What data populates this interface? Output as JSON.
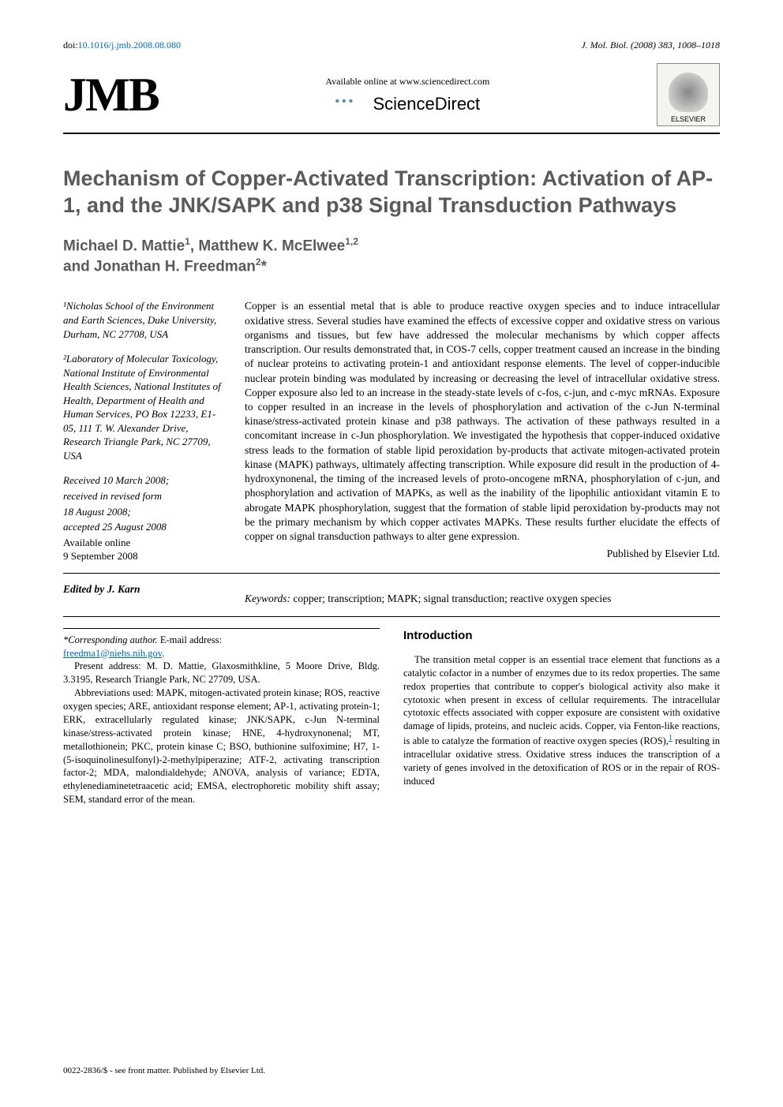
{
  "topbar": {
    "doi_label": "doi:",
    "doi_link": "10.1016/j.jmb.2008.08.080",
    "journal_ref": "J. Mol. Biol. (2008) 383, 1008–1018"
  },
  "header": {
    "jmb_logo": "JMB",
    "sd_available": "Available online at www.sciencedirect.com",
    "sd_name": "ScienceDirect",
    "elsevier_label": "ELSEVIER"
  },
  "title": "Mechanism of Copper-Activated Transcription: Activation of AP-1, and the JNK/SAPK and p38 Signal Transduction Pathways",
  "authors_line1": "Michael D. Mattie¹, Matthew K. McElwee¹,²",
  "authors_line2": "and Jonathan H. Freedman²*",
  "affiliations": {
    "a1": "¹Nicholas School of the Environment and Earth Sciences, Duke University, Durham, NC 27708, USA",
    "a2": "²Laboratory of Molecular Toxicology, National Institute of Environmental Health Sciences, National Institutes of Health, Department of Health and Human Services, PO Box 12233, E1-05, 111 T. W. Alexander Drive, Research Triangle Park, NC 27709, USA"
  },
  "dates": {
    "received": "Received 10 March 2008;",
    "revised": "received in revised form",
    "revised_date": "18 August 2008;",
    "accepted": "accepted 25 August 2008",
    "online_label": "Available online",
    "online_date": "9 September 2008"
  },
  "abstract": "Copper is an essential metal that is able to produce reactive oxygen species and to induce intracellular oxidative stress. Several studies have examined the effects of excessive copper and oxidative stress on various organisms and tissues, but few have addressed the molecular mechanisms by which copper affects transcription. Our results demonstrated that, in COS-7 cells, copper treatment caused an increase in the binding of nuclear proteins to activating protein-1 and antioxidant response elements. The level of copper-inducible nuclear protein binding was modulated by increasing or decreasing the level of intracellular oxidative stress. Copper exposure also led to an increase in the steady-state levels of c-fos, c-jun, and c-myc mRNAs. Exposure to copper resulted in an increase in the levels of phosphorylation and activation of the c-Jun N-terminal kinase/stress-activated protein kinase and p38 pathways. The activation of these pathways resulted in a concomitant increase in c-Jun phosphorylation. We investigated the hypothesis that copper-induced oxidative stress leads to the formation of stable lipid peroxidation by-products that activate mitogen-activated protein kinase (MAPK) pathways, ultimately affecting transcription. While exposure did result in the production of 4-hydroxynonenal, the timing of the increased levels of proto-oncogene mRNA, phosphorylation of c-jun, and phosphorylation and activation of MAPKs, as well as the inability of the lipophilic antioxidant vitamin E to abrogate MAPK phosphorylation, suggest that the formation of stable lipid peroxidation by-products may not be the primary mechanism by which copper activates MAPKs. These results further elucidate the effects of copper on signal transduction pathways to alter gene expression.",
  "publisher_line": "Published by Elsevier Ltd.",
  "keywords_label": "Keywords:",
  "keywords": "copper; transcription; MAPK; signal transduction; reactive oxygen species",
  "editor_label": "Edited by J. Karn",
  "corresponding": {
    "label": "*Corresponding author.",
    "email_label": " E-mail address:",
    "email": "freedma1@niehs.nih.gov",
    "period": ".",
    "present_addr": "Present address: M. D. Mattie, Glaxosmithkline, 5 Moore Drive, Bldg. 3.3195, Research Triangle Park, NC 27709, USA.",
    "abbrev": "Abbreviations used: MAPK, mitogen-activated protein kinase; ROS, reactive oxygen species; ARE, antioxidant response element; AP-1, activating protein-1; ERK, extracellularly regulated kinase; JNK/SAPK, c-Jun N-terminal kinase/stress-activated protein kinase; HNE, 4-hydroxynonenal; MT, metallothionein; PKC, protein kinase C; BSO, buthionine sulfoximine; H7, 1-(5-isoquinolinesulfonyl)-2-methylpiperazine; ATF-2, activating transcription factor-2; MDA, malondialdehyde; ANOVA, analysis of variance; EDTA, ethylenediaminetetraacetic acid; EMSA, electrophoretic mobility shift assay; SEM, standard error of the mean."
  },
  "intro_heading": "Introduction",
  "intro_p1a": "The transition metal copper is an essential trace element that functions as a catalytic cofactor in a number of enzymes due to its redox properties. The same redox properties that contribute to copper's biological activity also make it cytotoxic when present in excess of cellular requirements. The intracellular cytotoxic effects associated with copper exposure are consistent with oxidative damage of lipids, proteins, and nucleic acids. Copper, via Fenton-like reactions, is able to catalyze the formation of reactive oxygen species (ROS),",
  "intro_ref1": "1",
  "intro_p1b": " resulting in intracellular oxidative stress. Oxidative stress induces the transcription of a variety of genes involved in the detoxification of ROS or in the repair of ROS-induced",
  "footer": "0022-2836/$ - see front matter. Published by Elsevier Ltd."
}
